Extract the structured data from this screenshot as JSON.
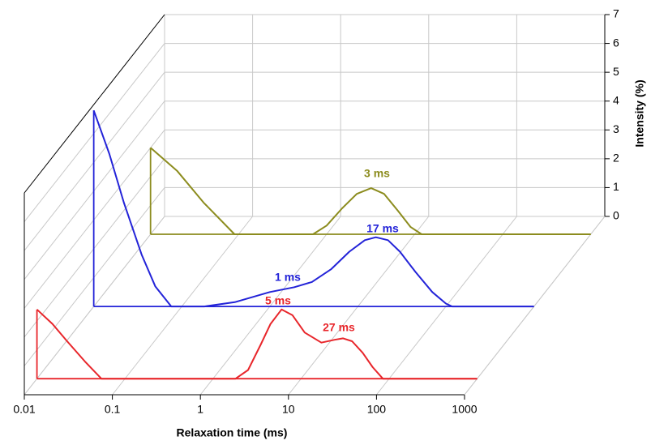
{
  "chart_data": {
    "type": "waterfall",
    "xlabel": "Relaxation time (ms)",
    "ylabel": "Intensity (%)",
    "log_x": true,
    "xlim": [
      0.01,
      1000
    ],
    "xticks": [
      0.01,
      0.1,
      1,
      10,
      100,
      1000
    ],
    "ylim": [
      0,
      7
    ],
    "yticks": [
      0,
      1,
      2,
      3,
      4,
      5,
      6,
      7
    ],
    "grid": true,
    "series": [
      {
        "color": "#e8262b",
        "x": [
          0.01,
          0.015,
          0.022,
          0.035,
          0.054,
          0.1,
          1,
          1.8,
          2.5,
          3.5,
          4.5,
          6,
          8,
          11,
          17,
          24,
          30,
          38,
          50,
          65,
          85,
          200,
          1000
        ],
        "values": [
          2.4,
          1.9,
          1.3,
          0.6,
          0,
          0,
          0,
          0,
          0.3,
          1.2,
          1.9,
          2.4,
          2.2,
          1.6,
          1.25,
          1.35,
          1.4,
          1.3,
          0.9,
          0.4,
          0,
          0,
          0
        ]
      },
      {
        "color": "#2323d8",
        "x": [
          0.01,
          0.015,
          0.022,
          0.035,
          0.05,
          0.076,
          0.18,
          0.4,
          1,
          1.9,
          3,
          5,
          8,
          12,
          16,
          22,
          30,
          45,
          70,
          100,
          118,
          1000
        ],
        "values": [
          6.8,
          5.3,
          3.6,
          1.8,
          0.7,
          0,
          0,
          0.15,
          0.5,
          0.67,
          0.85,
          1.3,
          1.9,
          2.3,
          2.4,
          2.3,
          1.9,
          1.2,
          0.5,
          0.1,
          0,
          0
        ]
      },
      {
        "color": "#8c8c1e",
        "x": [
          0.01,
          0.02,
          0.04,
          0.09,
          0.7,
          1,
          1.5,
          2.2,
          3.2,
          4.5,
          6.5,
          9,
          12,
          1000
        ],
        "values": [
          3.0,
          2.2,
          1.1,
          0,
          0,
          0.3,
          0.9,
          1.4,
          1.6,
          1.4,
          0.8,
          0.25,
          0,
          0
        ]
      }
    ],
    "annotations": [
      {
        "text": "3 ms",
        "series": 2
      },
      {
        "text": "17 ms",
        "series": 1
      },
      {
        "text": "1 ms",
        "series": 1
      },
      {
        "text": "5 ms",
        "series": 0
      },
      {
        "text": "27 ms",
        "series": 0
      }
    ]
  }
}
